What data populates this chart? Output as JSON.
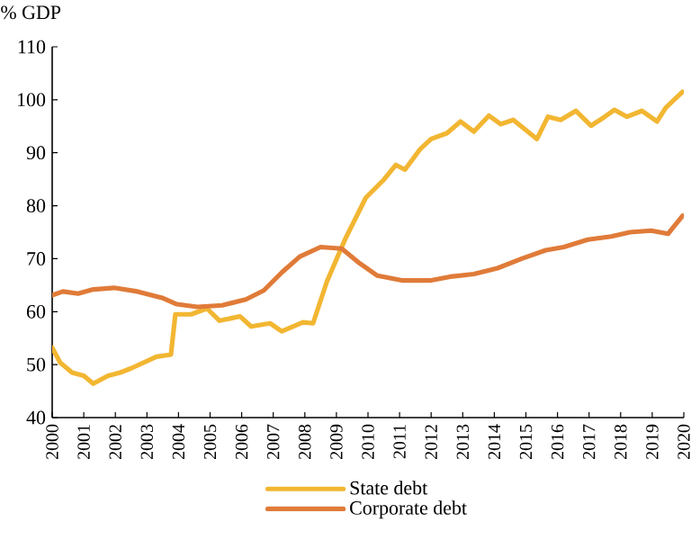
{
  "chart_data": {
    "type": "line",
    "ylabel": "% GDP",
    "xlim": [
      2000,
      2020
    ],
    "xticks": [
      2000,
      2001,
      2002,
      2003,
      2004,
      2005,
      2006,
      2007,
      2008,
      2009,
      2010,
      2011,
      2012,
      2013,
      2014,
      2015,
      2016,
      2017,
      2018,
      2019,
      2020
    ],
    "ylim": [
      40,
      110
    ],
    "yticks": [
      40,
      50,
      60,
      70,
      80,
      90,
      100,
      110
    ],
    "grid": false,
    "legend": "bottom",
    "marker": "none",
    "line_style": "solid",
    "series": [
      {
        "name": "State debt",
        "color": "#f2b632",
        "x": [
          2000.0,
          2000.25,
          2000.63,
          2001.0,
          2001.3,
          2001.77,
          2002.15,
          2002.5,
          2002.9,
          2003.3,
          2003.76,
          2003.9,
          2004.4,
          2004.9,
          2005.3,
          2005.95,
          2006.3,
          2006.9,
          2007.27,
          2007.94,
          2008.26,
          2008.7,
          2009.27,
          2009.93,
          2010.5,
          2010.88,
          2011.17,
          2011.64,
          2012.0,
          2012.5,
          2012.93,
          2013.35,
          2013.83,
          2014.2,
          2014.6,
          2015.06,
          2015.35,
          2015.7,
          2016.1,
          2016.58,
          2017.06,
          2017.4,
          2017.8,
          2018.2,
          2018.67,
          2019.15,
          2019.43,
          2019.96
        ],
        "values": [
          53.2,
          50.4,
          48.5,
          47.9,
          46.4,
          47.9,
          48.5,
          49.3,
          50.4,
          51.5,
          51.9,
          59.5,
          59.5,
          60.6,
          58.3,
          59.1,
          57.2,
          57.8,
          56.3,
          58.0,
          57.8,
          65.7,
          73.6,
          81.5,
          84.9,
          87.7,
          86.8,
          90.6,
          92.6,
          93.7,
          95.9,
          94.0,
          97.0,
          95.4,
          96.2,
          94.0,
          92.6,
          96.8,
          96.2,
          97.9,
          95.1,
          96.4,
          98.1,
          96.8,
          97.9,
          95.9,
          98.5,
          101.5
        ]
      },
      {
        "name": "Corporate debt",
        "color": "#e07b39",
        "x": [
          2000.0,
          2000.34,
          2000.82,
          2001.3,
          2001.96,
          2002.7,
          2003.48,
          2003.95,
          2004.6,
          2005.38,
          2006.13,
          2006.7,
          2007.27,
          2007.84,
          2008.5,
          2009.17,
          2009.74,
          2010.3,
          2011.07,
          2012.0,
          2012.6,
          2013.35,
          2014.1,
          2014.87,
          2015.63,
          2016.2,
          2016.96,
          2017.7,
          2018.3,
          2018.96,
          2019.5,
          2019.96
        ],
        "values": [
          63.1,
          63.8,
          63.4,
          64.2,
          64.5,
          63.8,
          62.6,
          61.4,
          60.9,
          61.2,
          62.3,
          64.0,
          67.4,
          70.4,
          72.2,
          71.9,
          69.1,
          66.8,
          65.9,
          65.9,
          66.6,
          67.1,
          68.2,
          70.0,
          71.6,
          72.2,
          73.6,
          74.2,
          75.0,
          75.3,
          74.7,
          78.1
        ]
      }
    ]
  }
}
